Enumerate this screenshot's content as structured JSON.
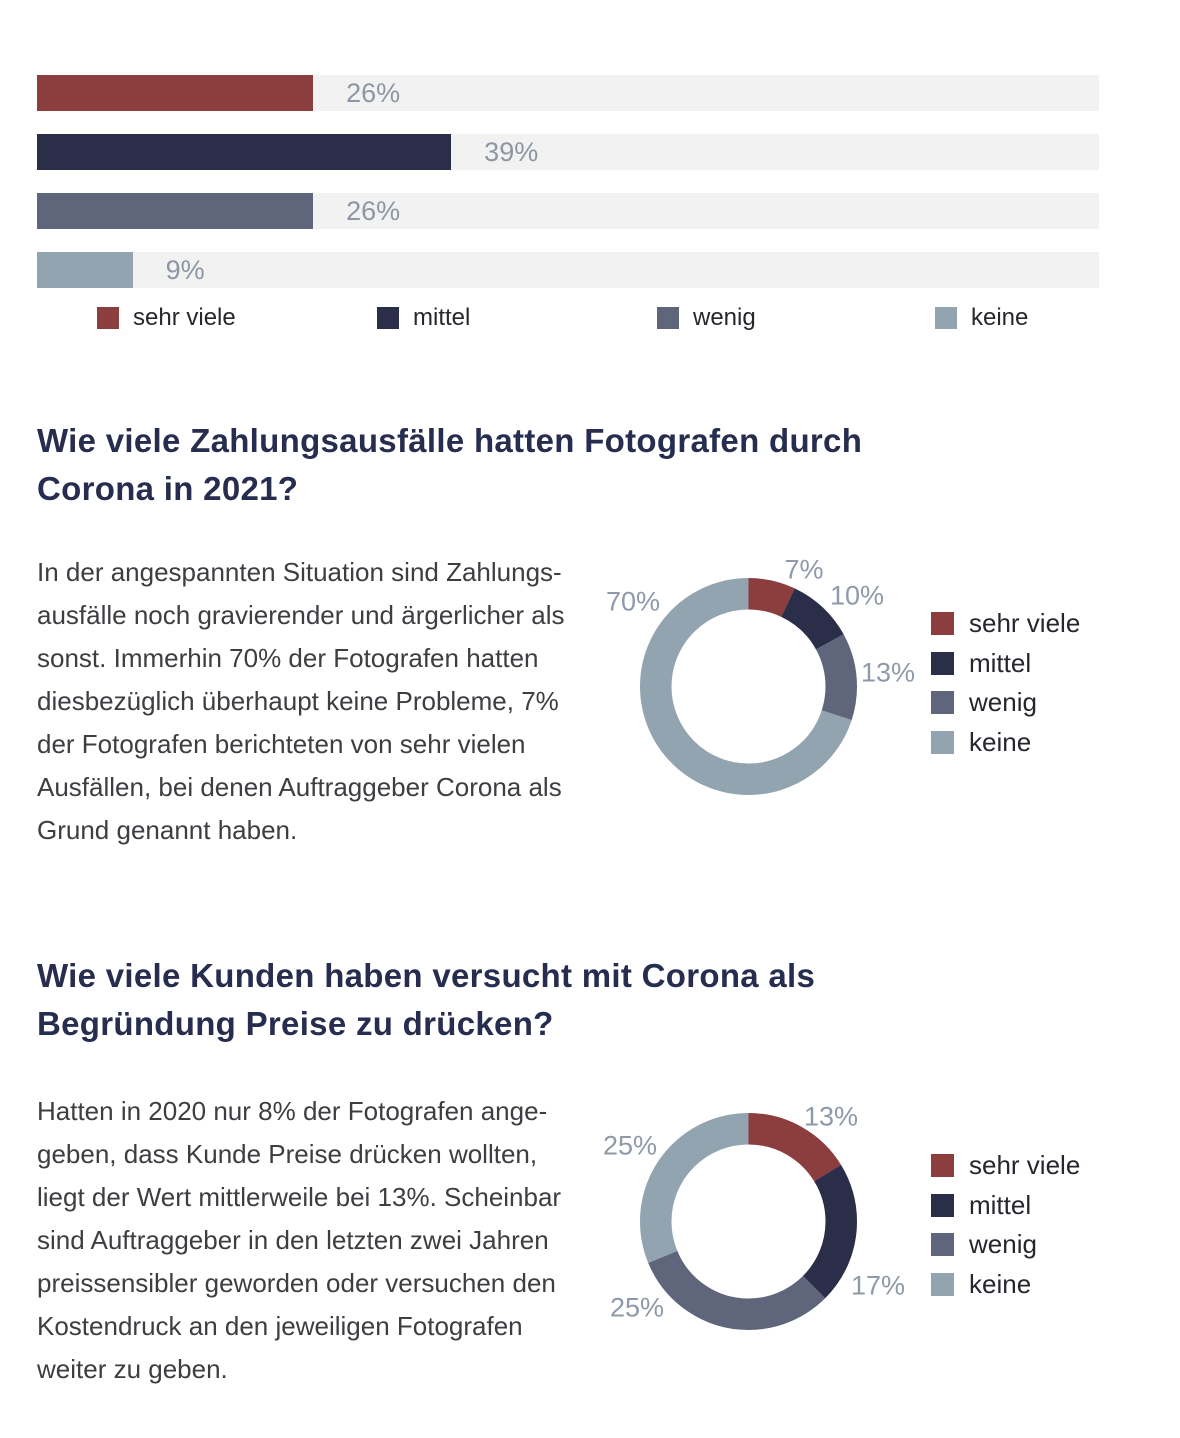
{
  "palette": {
    "sehr_viele": "#8c3d3d",
    "mittel": "#2a2e49",
    "wenig": "#5f657a",
    "keine": "#93a4b1",
    "bar_track": "#f2f2f2",
    "value_label": "#8d96a4",
    "heading_text": "#272d4e",
    "body_text": "#3d3d42",
    "legend_text": "#26262e"
  },
  "chart_data": [
    {
      "type": "bar",
      "orientation": "horizontal",
      "categories": [
        "sehr viele",
        "mittel",
        "wenig",
        "keine"
      ],
      "values": [
        26,
        39,
        26,
        9
      ],
      "value_labels": [
        "26%",
        "39%",
        "26%",
        "9%"
      ],
      "colors": [
        "#8c3d3d",
        "#2a2e49",
        "#5f657a",
        "#93a4b1"
      ],
      "track_color": "#f2f2f2",
      "xlim": [
        0,
        100
      ],
      "legend_position": "bottom",
      "grid": false,
      "title": ""
    },
    {
      "type": "pie",
      "subtype": "donut",
      "categories": [
        "sehr viele",
        "mittel",
        "wenig",
        "keine"
      ],
      "values": [
        7,
        10,
        13,
        70
      ],
      "slice_labels": [
        "7%",
        "10%",
        "13%",
        "70%"
      ],
      "colors": [
        "#8c3d3d",
        "#2a2e49",
        "#5f657a",
        "#93a4b1"
      ],
      "legend_position": "right",
      "start_angle_deg": 0,
      "direction": "clockwise",
      "title": ""
    },
    {
      "type": "pie",
      "subtype": "donut",
      "categories": [
        "sehr viele",
        "mittel",
        "wenig",
        "keine"
      ],
      "values": [
        13,
        17,
        25,
        25
      ],
      "slice_labels": [
        "13%",
        "17%",
        "25%",
        "25%"
      ],
      "colors": [
        "#8c3d3d",
        "#2a2e49",
        "#5f657a",
        "#93a4b1"
      ],
      "legend_position": "right",
      "start_angle_deg": 0,
      "direction": "clockwise",
      "title": ""
    }
  ],
  "sections": [
    {
      "heading": "Wie viele Zahlungsausfälle hatten Fotografen durch\nCorona in 2021?",
      "body": "In der angespannten Situation sind Zahlungs-\nausfälle noch gravierender und ärgerlicher als\nsonst. Immerhin 70% der Fotografen hatten\ndiesbezüglich überhaupt keine Probleme, 7%\nder Fotografen berichteten von sehr vielen\nAusfällen, bei denen Auftraggeber Corona als\nGrund genannt haben."
    },
    {
      "heading": "Wie viele Kunden haben versucht mit Corona als\nBegründung Preise zu drücken?",
      "body": "Hatten in 2020 nur 8% der Fotografen ange-\ngeben, dass Kunde Preise drücken wollten,\nliegt der Wert mittlerweile bei 13%. Scheinbar\nsind Auftraggeber in den letzten zwei Jahren\npreissensibler geworden oder versuchen den\nKostendruck an den jeweiligen Fotografen\nweiter zu geben."
    }
  ]
}
